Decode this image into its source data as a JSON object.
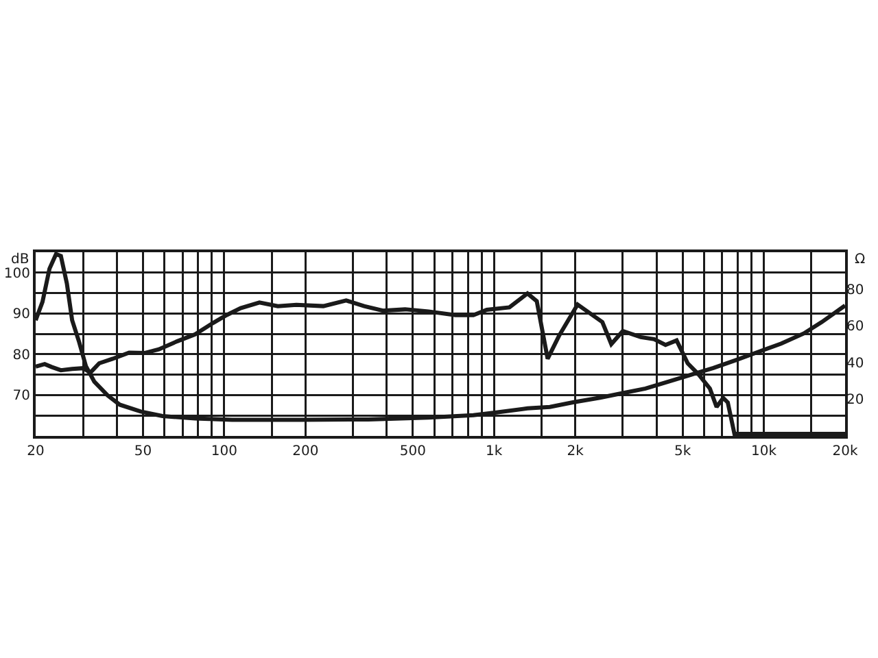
{
  "chart_data": {
    "type": "line",
    "ylabel": "dB",
    "y2label": "Ω",
    "log": "x",
    "grid": true,
    "xlim": [
      20,
      20000
    ],
    "xticks": [
      20,
      {
        "value": 30,
        "label": null
      },
      {
        "value": 40,
        "label": null
      },
      50,
      {
        "value": 60,
        "label": null
      },
      {
        "value": 70,
        "label": null
      },
      {
        "value": 80,
        "label": null
      },
      {
        "value": 90,
        "label": null
      },
      100,
      {
        "value": 150,
        "label": null
      },
      200,
      {
        "value": 300,
        "label": null
      },
      {
        "value": 400,
        "label": null
      },
      500,
      {
        "value": 600,
        "label": null
      },
      {
        "value": 700,
        "label": null
      },
      {
        "value": 800,
        "label": null
      },
      {
        "value": 900,
        "label": null
      },
      {
        "value": 1000,
        "label": "1k"
      },
      {
        "value": 1500,
        "label": null
      },
      {
        "value": 2000,
        "label": "2k"
      },
      {
        "value": 3000,
        "label": null
      },
      {
        "value": 4000,
        "label": null
      },
      {
        "value": 5000,
        "label": "5k"
      },
      {
        "value": 6000,
        "label": null
      },
      {
        "value": 7000,
        "label": null
      },
      {
        "value": 8000,
        "label": null
      },
      {
        "value": 9000,
        "label": null
      },
      {
        "value": 10000,
        "label": "10k"
      },
      {
        "value": 15000,
        "label": null
      },
      {
        "value": 20000,
        "label": "20k"
      }
    ],
    "ylim": [
      60,
      105
    ],
    "yticks": [
      {
        "value": 65,
        "label": null
      },
      70,
      {
        "value": 75,
        "label": null
      },
      80,
      {
        "value": 85,
        "label": null
      },
      90,
      {
        "value": 95,
        "label": null
      },
      100
    ],
    "y2lim": [
      0,
      100
    ],
    "y2ticks": [
      20,
      40,
      60,
      80
    ],
    "series": [
      {
        "color": "#1a1a1a",
        "x": [
          20,
          21.6,
          22.9,
          24.8,
          27.3,
          30,
          31.9,
          34.4,
          38.6,
          44.4,
          50.6,
          57.2,
          67,
          78,
          91,
          102,
          115,
          135,
          158,
          185,
          233,
          283,
          330,
          387,
          468,
          571,
          719,
          838,
          940,
          1140,
          1330,
          1440,
          1580,
          1740,
          2040,
          2250,
          2520,
          2720,
          3000,
          3500,
          3920,
          4320,
          4750,
          5220,
          5740,
          6310,
          6680,
          7070,
          7350,
          7780,
          20000
        ],
        "values": [
          77,
          77.6,
          76.9,
          76.1,
          76.4,
          76.6,
          75.5,
          77.8,
          78.9,
          80.4,
          80.3,
          81.2,
          83.2,
          84.9,
          87.7,
          89.6,
          91.3,
          92.7,
          91.8,
          92.1,
          91.8,
          93.2,
          91.8,
          90.7,
          91,
          90.5,
          89.6,
          89.6,
          90.9,
          91.5,
          94.9,
          93,
          78.9,
          84.5,
          92.2,
          90.2,
          87.9,
          82.5,
          85.7,
          84.2,
          83.7,
          82.3,
          83.4,
          77.8,
          75,
          71.6,
          67.1,
          69.3,
          68.2,
          60.5,
          60.5
        ]
      },
      {
        "color": "#1a1a1a",
        "axis": "y2",
        "x": [
          20,
          21.2,
          22.5,
          23.8,
          24.8,
          26.1,
          27.3,
          29,
          30.7,
          33,
          37,
          41,
          49,
          59,
          78,
          107,
          192,
          342,
          570,
          838,
          1020,
          1330,
          1610,
          1960,
          2470,
          3000,
          3640,
          4420,
          5360,
          6500,
          7880,
          9560,
          11600,
          14070,
          16400,
          20000
        ],
        "values": [
          63,
          73,
          91,
          99,
          98,
          83,
          63,
          51,
          38,
          29.5,
          22,
          17,
          13.3,
          10.8,
          9.5,
          8.8,
          8.8,
          9,
          10,
          11.3,
          12.8,
          15,
          15.8,
          18.3,
          20.8,
          23.3,
          25.8,
          29.5,
          33.3,
          37,
          41.3,
          45.8,
          50.3,
          55.8,
          62,
          71
        ]
      }
    ]
  }
}
